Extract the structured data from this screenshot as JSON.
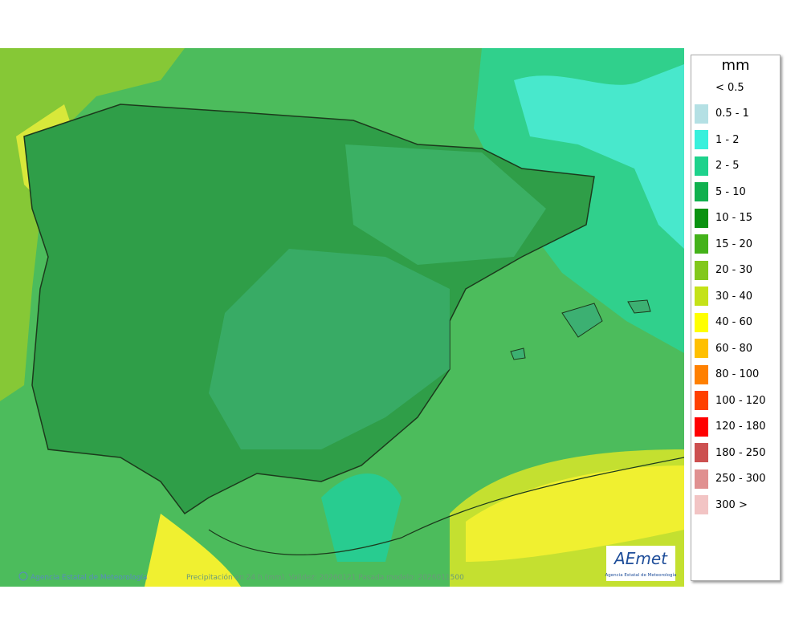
{
  "map": {
    "credit": "Agencia Estatal de Meteorología",
    "caption": "Precipitación en 24 h (mm). Validez: 20260121 Pasada modelo: 2026011500",
    "logo": {
      "name": "AEmet",
      "subtitle": "Agencia Estatal de Meteorología"
    }
  },
  "legend": {
    "unit": "mm",
    "items": [
      {
        "label": "< 0.5"
      },
      {
        "label": "0.5 - 1",
        "color": "#b4e0e4"
      },
      {
        "label": "1 - 2",
        "color": "#38f0dc"
      },
      {
        "label": "2 - 5",
        "color": "#1ed28c"
      },
      {
        "label": "5 - 10",
        "color": "#10b04e"
      },
      {
        "label": "10 - 15",
        "color": "#0a9210"
      },
      {
        "label": "15 - 20",
        "color": "#44b21a"
      },
      {
        "label": "20 - 30",
        "color": "#82c81c"
      },
      {
        "label": "30 - 40",
        "color": "#c4e218"
      },
      {
        "label": "40 - 60",
        "color": "#ffff00"
      },
      {
        "label": "60 - 80",
        "color": "#ffc000"
      },
      {
        "label": "80 - 100",
        "color": "#ff8000"
      },
      {
        "label": "100 - 120",
        "color": "#ff4000"
      },
      {
        "label": "120 - 180",
        "color": "#ff0000"
      },
      {
        "label": "180 - 250",
        "color": "#cc5050"
      },
      {
        "label": "250 - 300",
        "color": "#e09090"
      },
      {
        "label": "300 >",
        "color": "#f2c4c4"
      }
    ]
  }
}
